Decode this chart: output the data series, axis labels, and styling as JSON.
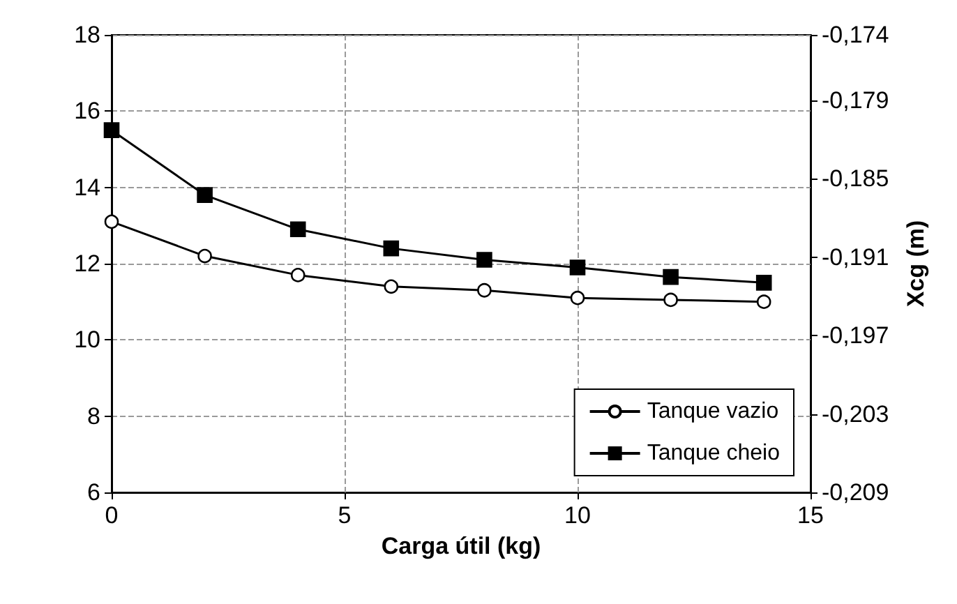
{
  "chart_data": {
    "type": "line",
    "xlabel": "Carga útil (kg)",
    "y2label": "Xcg (m)",
    "xlim": [
      0,
      15
    ],
    "xticks": [
      0,
      5,
      10,
      15
    ],
    "ylim": [
      6,
      18
    ],
    "yticks": [
      6,
      8,
      10,
      12,
      14,
      16,
      18
    ],
    "y2lim": [
      -0.209,
      -0.174
    ],
    "y2ticks": [
      {
        "value": -0.209,
        "label": "-0,209"
      },
      {
        "value": -0.203,
        "label": "-0,203"
      },
      {
        "value": -0.197,
        "label": "-0,197"
      },
      {
        "value": -0.191,
        "label": "-0,191"
      },
      {
        "value": -0.185,
        "label": "-0,185"
      },
      {
        "value": -0.179,
        "label": "-0,179"
      },
      {
        "value": -0.174,
        "label": "-0,174"
      }
    ],
    "x": [
      0,
      2,
      4,
      6,
      8,
      10,
      12,
      14
    ],
    "series": [
      {
        "name": "Tanque vazio",
        "color": "#000000",
        "marker": "circle",
        "values": [
          13.1,
          12.2,
          11.7,
          11.4,
          11.3,
          11.1,
          11.05,
          11.0
        ]
      },
      {
        "name": "Tanque cheio",
        "color": "#000000",
        "marker": "square",
        "values": [
          15.5,
          13.8,
          12.9,
          12.4,
          12.1,
          11.9,
          11.65,
          11.5
        ]
      }
    ],
    "grid": true,
    "legend": "bottom right",
    "line_style": "solid"
  }
}
